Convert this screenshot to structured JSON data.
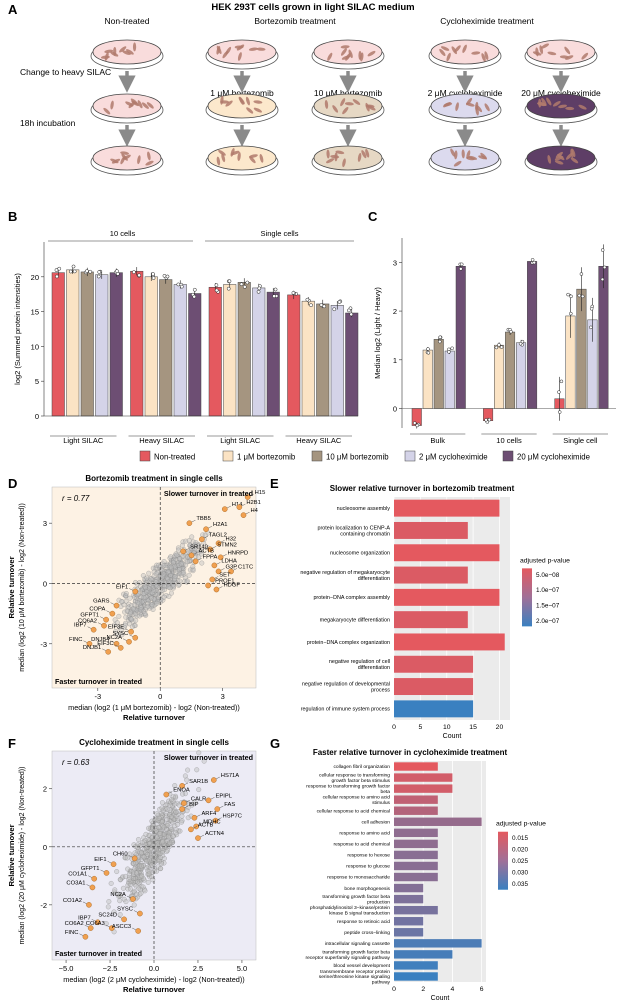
{
  "colors": {
    "nontreated": "#E4595F",
    "bz1": "#FBE3C4",
    "bz10": "#A59580",
    "cx2": "#D4D3E8",
    "cx20": "#6D4E73",
    "dish_a": "#F9DCDC",
    "dish_b1": "#FCE8CC",
    "dish_b2": "#E6D8C4",
    "dish_c1": "#DCDAEE",
    "dish_c2": "#5E3E66",
    "cell": "#B07A6C",
    "panel_d_bg": "#FDF2E4",
    "panel_f_bg": "#ECEBF5",
    "highlight": "#F0A050",
    "grey_pt": "#BFBFBF"
  },
  "panel_a": {
    "label": "A",
    "title": "HEK 293T cells grown in light SILAC medium",
    "groups": [
      "Non-treated",
      "Bortezomib treatment",
      "Cycloheximide treatment"
    ],
    "treatments": [
      "1 μM bortezomib",
      "10 μM bortezomib",
      "2 μM cycloheximide",
      "20 μM cycloheximide"
    ],
    "steps": [
      "Change to heavy SILAC",
      "18h incubation"
    ]
  },
  "legend": {
    "items": [
      "Non-treated",
      "1 μM bortezomib",
      "10 μM bortezomib",
      "2 μM cycloheximide",
      "20 μM cycloheximide"
    ]
  },
  "chart_data": [
    {
      "panel": "B",
      "type": "bar",
      "title": "",
      "ylabel": "log2 (Summed protein intensities)",
      "ylim": [
        0,
        25
      ],
      "yticks": [
        0,
        5,
        10,
        15,
        20
      ],
      "top_groups": [
        "10 cells",
        "Single cells"
      ],
      "groups": [
        "Light SILAC",
        "Heavy SILAC",
        "Light SILAC",
        "Heavy SILAC"
      ],
      "series": [
        {
          "name": "Non-treated",
          "values": [
            20.6,
            20.8,
            18.5,
            17.4
          ]
        },
        {
          "name": "1 μM bortezomib",
          "values": [
            21.0,
            20.0,
            18.9,
            16.5
          ]
        },
        {
          "name": "10 μM bortezomib",
          "values": [
            20.7,
            19.6,
            19.2,
            16.1
          ]
        },
        {
          "name": "2 μM cycloheximide",
          "values": [
            20.3,
            18.9,
            18.4,
            15.9
          ]
        },
        {
          "name": "20 μM cycloheximide",
          "values": [
            20.6,
            17.6,
            17.8,
            14.8
          ]
        }
      ]
    },
    {
      "panel": "C",
      "type": "bar",
      "ylabel": "Median log2 (Light / Heavy)",
      "ylim": [
        -0.4,
        3.5
      ],
      "yticks": [
        0,
        1,
        2,
        3
      ],
      "groups": [
        "Bulk",
        "10 cells",
        "Single cell"
      ],
      "series": [
        {
          "name": "Non-treated",
          "values": [
            -0.35,
            -0.25,
            0.2
          ]
        },
        {
          "name": "1 μM bortezomib",
          "values": [
            1.2,
            1.3,
            1.9
          ]
        },
        {
          "name": "10 μM bortezomib",
          "values": [
            1.42,
            1.57,
            2.45
          ]
        },
        {
          "name": "2 μM cycloheximide",
          "values": [
            1.18,
            1.35,
            1.82
          ]
        },
        {
          "name": "20 μM cycloheximide",
          "values": [
            2.92,
            3.02,
            2.92
          ]
        }
      ]
    },
    {
      "panel": "D",
      "type": "scatter",
      "title": "Bortezomib treatment in single cells",
      "r": "r = 0.77",
      "quad_top": "Slower turnover in treated",
      "quad_bottom": "Faster turnover in treated",
      "xlabel": "median (log2 (1 μM bortezomib) - log2 (Non-treated))",
      "xlabel2": "Relative turnover",
      "ylabel": "median (log2 (10 μM bortezomib) - log2 (Non-treated))",
      "ylabel2": "Relative turnover",
      "xlim": [
        -5.2,
        4.6
      ],
      "ylim": [
        -5.2,
        4.8
      ],
      "xticks": [
        -3,
        0,
        3
      ],
      "yticks": [
        -3,
        0,
        3
      ],
      "labeled_points": [
        {
          "label": "H15",
          "x": 4.2,
          "y": 4.3
        },
        {
          "label": "H14",
          "x": 3.1,
          "y": 3.7
        },
        {
          "label": "H2B1",
          "x": 3.8,
          "y": 3.8
        },
        {
          "label": "H4",
          "x": 4.0,
          "y": 3.4
        },
        {
          "label": "TBB5",
          "x": 1.4,
          "y": 3.0
        },
        {
          "label": "H2A1",
          "x": 2.2,
          "y": 2.7
        },
        {
          "label": "TAGL2",
          "x": 2.0,
          "y": 2.2
        },
        {
          "label": "H32",
          "x": 2.8,
          "y": 2.0
        },
        {
          "label": "SR140",
          "x": 1.1,
          "y": 1.6
        },
        {
          "label": "STMN2",
          "x": 2.4,
          "y": 1.7
        },
        {
          "label": "ACTB",
          "x": 1.5,
          "y": 1.4
        },
        {
          "label": "FPPA",
          "x": 1.7,
          "y": 1.1
        },
        {
          "label": "HNRPD",
          "x": 2.9,
          "y": 1.3
        },
        {
          "label": "LDHA",
          "x": 2.6,
          "y": 0.9
        },
        {
          "label": "G3P",
          "x": 2.8,
          "y": 0.6
        },
        {
          "label": "C1TC",
          "x": 3.4,
          "y": 0.6
        },
        {
          "label": "SET",
          "x": 2.5,
          "y": 0.2
        },
        {
          "label": "PROF1",
          "x": 2.3,
          "y": -0.1
        },
        {
          "label": "HDGF",
          "x": 2.7,
          "y": -0.3
        },
        {
          "label": "EIF1",
          "x": -1.2,
          "y": -0.4
        },
        {
          "label": "GARS",
          "x": -2.1,
          "y": -1.1
        },
        {
          "label": "COPA",
          "x": -2.3,
          "y": -1.5
        },
        {
          "label": "GFPT1",
          "x": -2.6,
          "y": -1.8
        },
        {
          "label": "CO6A2",
          "x": -2.7,
          "y": -2.1
        },
        {
          "label": "IBP7",
          "x": -3.2,
          "y": -2.3
        },
        {
          "label": "FINC",
          "x": -3.4,
          "y": -3.0
        },
        {
          "label": "DNJB4",
          "x": -2.1,
          "y": -3.0
        },
        {
          "label": "DNJB1",
          "x": -2.5,
          "y": -3.4
        },
        {
          "label": "EIF3E",
          "x": -1.4,
          "y": -2.4
        },
        {
          "label": "SYSC",
          "x": -1.2,
          "y": -2.7
        },
        {
          "label": "NC2A",
          "x": -1.5,
          "y": -2.9
        },
        {
          "label": "EIF3C",
          "x": -1.9,
          "y": -3.2
        }
      ]
    },
    {
      "panel": "E",
      "type": "bar",
      "title": "Slower relative turnover in bortezomib treatment",
      "xlabel": "Count",
      "xlim": [
        0,
        22
      ],
      "xticks": [
        0,
        5,
        10,
        15,
        20
      ],
      "categories": [
        "nucleosome assembly",
        "protein localization to CENP-A containing chromatin",
        "nucleosome organization",
        "negative regulation of megakaryocyte differentiation",
        "protein−DNA complex assembly",
        "megakaryocyte differentiation",
        "protein−DNA complex organization",
        "negative regulation of cell differentiation",
        "negative regulation of developmental process",
        "regulation of immune system process"
      ],
      "values": [
        20,
        14,
        20,
        14,
        20,
        14,
        21,
        15,
        15,
        15
      ],
      "padj": [
        2e-08,
        3e-08,
        2e-08,
        3e-08,
        2e-08,
        3e-08,
        2e-08,
        3e-08,
        3e-08,
        2e-07
      ],
      "legend_title": "adjusted p-value",
      "legend_labels": [
        "5.0e−08",
        "1.0e−07",
        "1.5e−07",
        "2.0e−07"
      ]
    },
    {
      "panel": "F",
      "type": "scatter",
      "title": "Cycloheximide treatment in single cells",
      "r": "r = 0.63",
      "quad_top": "Slower turnover in treated",
      "quad_bottom": "Faster turnover in treated",
      "xlabel": "median (log2 (2 μM cycloheximide) - log2 (Non-treated))",
      "xlabel2": "Relative turnover",
      "ylabel": "median (log2 (20 μM cycloheximide) - log2 (Non-treated))",
      "ylabel2": "Relative turnover",
      "xlim": [
        -5.8,
        5.8
      ],
      "ylim": [
        -3.9,
        3.3
      ],
      "xticks": [
        -5.0,
        -2.5,
        0.0,
        2.5,
        5.0
      ],
      "xtick_labels": [
        "−5.0",
        "−2.5",
        "0.0",
        "2.5",
        "5.0"
      ],
      "yticks": [
        -2,
        0,
        2
      ],
      "labeled_points": [
        {
          "label": "HS71A",
          "x": 3.4,
          "y": 2.3
        },
        {
          "label": "SAR1B",
          "x": 1.6,
          "y": 2.1
        },
        {
          "label": "ENOA",
          "x": 0.7,
          "y": 1.8
        },
        {
          "label": "EPIPL",
          "x": 3.1,
          "y": 1.6
        },
        {
          "label": "CALR",
          "x": 1.7,
          "y": 1.5
        },
        {
          "label": "BIP",
          "x": 1.6,
          "y": 1.3
        },
        {
          "label": "FAS",
          "x": 3.6,
          "y": 1.3
        },
        {
          "label": "HSP7C",
          "x": 3.5,
          "y": 0.9
        },
        {
          "label": "ARF4",
          "x": 2.3,
          "y": 1.0
        },
        {
          "label": "MDHC",
          "x": 2.4,
          "y": 0.7
        },
        {
          "label": "ACTB",
          "x": 2.1,
          "y": 0.6
        },
        {
          "label": "ACTN4",
          "x": 2.5,
          "y": 0.3
        },
        {
          "label": "CH60",
          "x": -1.1,
          "y": -0.4
        },
        {
          "label": "EIF1",
          "x": -2.3,
          "y": -0.6
        },
        {
          "label": "GFPT1",
          "x": -2.7,
          "y": -0.9
        },
        {
          "label": "CO1A1",
          "x": -3.4,
          "y": -1.1
        },
        {
          "label": "CO3A1",
          "x": -3.5,
          "y": -1.4
        },
        {
          "label": "CO1A2",
          "x": -3.7,
          "y": -2.0
        },
        {
          "label": "NC2A",
          "x": -1.2,
          "y": -1.8
        },
        {
          "label": "SYSC",
          "x": -0.8,
          "y": -2.3
        },
        {
          "label": "IBP7",
          "x": -3.2,
          "y": -2.6
        },
        {
          "label": "SC24D",
          "x": -1.7,
          "y": -2.5
        },
        {
          "label": "CO6A2",
          "x": -3.6,
          "y": -2.8
        },
        {
          "label": "CO6A3",
          "x": -2.4,
          "y": -2.8
        },
        {
          "label": "ASCC3",
          "x": -0.9,
          "y": -2.9
        },
        {
          "label": "FINC",
          "x": -3.9,
          "y": -3.1
        }
      ]
    },
    {
      "panel": "G",
      "type": "bar",
      "title": "Faster relative turnover in cycloheximide treatment",
      "xlabel": "Count",
      "xlim": [
        0,
        6.3
      ],
      "xticks": [
        0,
        2,
        4,
        6
      ],
      "categories": [
        "collagen fibril organization",
        "cellular response to transforming growth factor beta stimulus",
        "response to transforming growth factor beta",
        "cellular response to amino acid stimulus",
        "cellular response to acid chemical",
        "cell adhesion",
        "response to amino acid",
        "response to acid chemical",
        "response to hexose",
        "response to glucose",
        "response to monosaccharide",
        "bone morphogenesis",
        "transforming growth factor beta production",
        "phosphatidylinositol 3−kinase/protein kinase B signal transduction",
        "response to retinoic acid",
        "peptide cross−linking",
        "intracellular signaling cassette",
        "transforming growth factor beta receptor superfamily signaling pathway",
        "blood vessel development",
        "transmembrane receptor protein serine/threonine kinase signaling pathway"
      ],
      "values": [
        3,
        4,
        4,
        3,
        3,
        6,
        3,
        3,
        3,
        3,
        3,
        2,
        2,
        3,
        2,
        2,
        6,
        4,
        3,
        3
      ],
      "padj": [
        0.012,
        0.015,
        0.015,
        0.018,
        0.02,
        0.025,
        0.026,
        0.026,
        0.027,
        0.027,
        0.027,
        0.028,
        0.029,
        0.03,
        0.031,
        0.032,
        0.037,
        0.038,
        0.039,
        0.04
      ],
      "legend_title": "adjusted p-value",
      "legend_labels": [
        "0.015",
        "0.020",
        "0.025",
        "0.030",
        "0.035"
      ]
    }
  ]
}
